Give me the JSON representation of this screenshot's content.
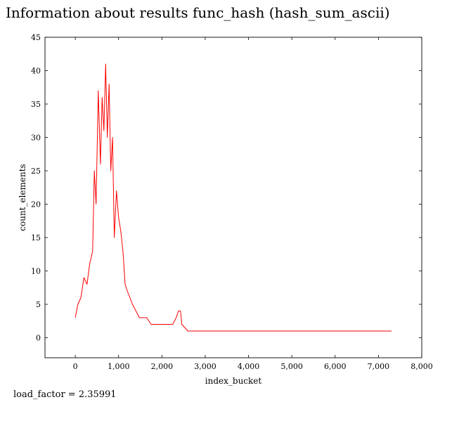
{
  "title": "Information about results func_hash (hash_sum_ascii)",
  "load_factor_text": "load_factor = 2.35991",
  "chart_data": {
    "type": "line",
    "title": "",
    "xlabel": "index_bucket",
    "ylabel": "count_elements",
    "xlim": [
      -700,
      8000
    ],
    "ylim": [
      -3,
      45
    ],
    "grid": false,
    "legend": "none",
    "series_color": "#ff0000",
    "x_ticks": [
      0,
      1000,
      2000,
      3000,
      4000,
      5000,
      6000,
      7000,
      8000
    ],
    "x_tick_labels": [
      "0",
      "1,000",
      "2,000",
      "3,000",
      "4,000",
      "5,000",
      "6,000",
      "7,000",
      "8,000"
    ],
    "y_ticks": [
      0,
      5,
      10,
      15,
      20,
      25,
      30,
      35,
      40,
      45
    ],
    "y_tick_labels": [
      "0",
      "5",
      "10",
      "15",
      "20",
      "25",
      "30",
      "35",
      "40",
      "45"
    ],
    "series": [
      {
        "x": [
          0,
          60,
          130,
          200,
          270,
          330,
          400,
          440,
          480,
          530,
          580,
          620,
          660,
          700,
          740,
          780,
          820,
          860,
          900,
          950,
          1000,
          1050,
          1100,
          1150,
          1200,
          1260,
          1320,
          1400,
          1480,
          1560,
          1650,
          1750,
          1850,
          1950,
          2050,
          2150,
          2250,
          2330,
          2380,
          2430,
          2460,
          2600,
          3500,
          4500,
          5500,
          6500,
          7300
        ],
        "y": [
          3,
          5,
          6,
          9,
          8,
          11,
          13,
          25,
          20,
          37,
          26,
          36,
          31,
          41,
          30,
          38,
          25,
          30,
          15,
          22,
          18,
          16,
          13,
          8,
          7,
          6,
          5,
          4,
          3,
          3,
          3,
          2,
          2,
          2,
          2,
          2,
          2,
          3,
          4,
          4,
          2,
          1,
          1,
          1,
          1,
          1,
          1
        ]
      }
    ]
  }
}
